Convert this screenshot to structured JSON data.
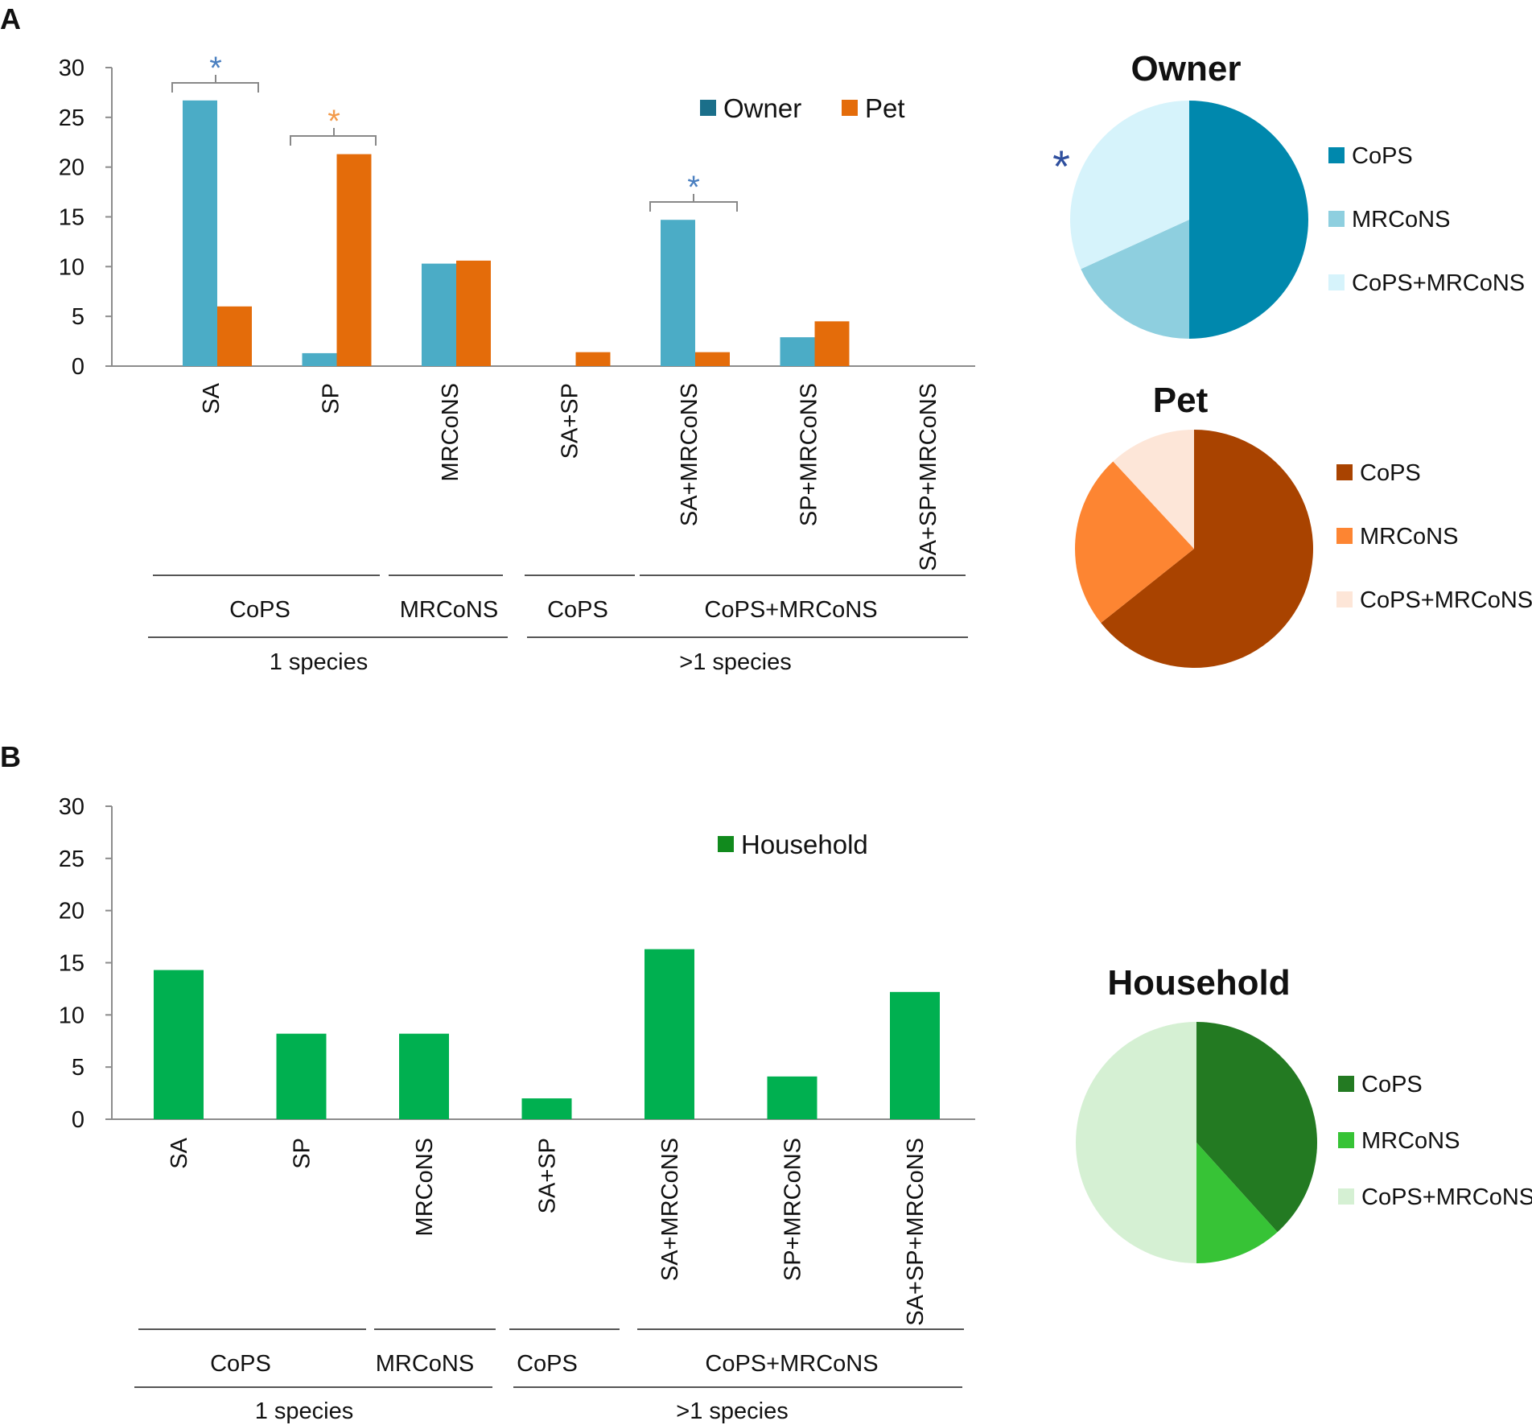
{
  "panels": {
    "a": {
      "label": "A",
      "legend": [
        "Owner",
        "Pet"
      ],
      "group_labels": {
        "sub": [
          "CoPS",
          "MRCoNS",
          "CoPS",
          "CoPS+MRCoNS"
        ],
        "main": [
          "1 species",
          ">1 species"
        ]
      },
      "significance": [
        {
          "category": "SA",
          "symbol": "*",
          "color": "#4a7fc0"
        },
        {
          "category": "SP",
          "symbol": "*",
          "color": "#f39a4a"
        },
        {
          "category": "SA+MRCoNS",
          "symbol": "*",
          "color": "#4a7fc0"
        }
      ]
    },
    "b": {
      "label": "B",
      "legend": [
        "Household"
      ],
      "group_labels": {
        "sub": [
          "CoPS",
          "MRCoNS",
          "CoPS",
          "CoPS+MRCoNS"
        ],
        "main": [
          "1 species",
          ">1 species"
        ]
      }
    }
  },
  "colors": {
    "owner_bar": "#4bacc6",
    "pet_bar": "#e46c0a",
    "owner_legend": "#1b6f8a",
    "pet_legend": "#e46c0a",
    "household_bar": "#00b050",
    "household_legend": "#118a1d"
  },
  "chart_data": [
    {
      "type": "bar",
      "panel": "A",
      "title": "",
      "xlabel": "",
      "ylabel": "",
      "categories": [
        "SA",
        "SP",
        "MRCoNS",
        "SA+SP",
        "SA+MRCoNS",
        "SP+MRCoNS",
        "SA+SP+MRCoNS"
      ],
      "series": [
        {
          "name": "Owner",
          "values": [
            26.7,
            1.3,
            10.3,
            0,
            14.7,
            2.9,
            0
          ]
        },
        {
          "name": "Pet",
          "values": [
            6.0,
            21.3,
            10.6,
            1.4,
            1.4,
            4.5,
            0
          ]
        }
      ],
      "ylim": [
        0,
        30
      ],
      "yticks": [
        0,
        5,
        10,
        15,
        20,
        25,
        30
      ],
      "legend_position": "top-right"
    },
    {
      "type": "bar",
      "panel": "B",
      "title": "",
      "xlabel": "",
      "ylabel": "",
      "categories": [
        "SA",
        "SP",
        "MRCoNS",
        "SA+SP",
        "SA+MRCoNS",
        "SP+MRCoNS",
        "SA+SP+MRCoNS"
      ],
      "series": [
        {
          "name": "Household",
          "values": [
            14.3,
            8.2,
            8.2,
            2.0,
            16.3,
            4.1,
            12.2
          ]
        }
      ],
      "ylim": [
        0,
        30
      ],
      "yticks": [
        0,
        5,
        10,
        15,
        20,
        25,
        30
      ],
      "legend_position": "top-right"
    },
    {
      "type": "pie",
      "title": "Owner",
      "labels": [
        "CoPS",
        "MRCoNS",
        "CoPS+MRCoNS"
      ],
      "values": [
        50,
        18.2,
        31.8
      ],
      "colors": [
        "#0088ad",
        "#8ecfdf",
        "#d6f3fb"
      ],
      "annotation": {
        "symbol": "*",
        "slice": "CoPS+MRCoNS",
        "color": "#2f4f9e"
      }
    },
    {
      "type": "pie",
      "title": "Pet",
      "labels": [
        "CoPS",
        "MRCoNS",
        "CoPS+MRCoNS"
      ],
      "values": [
        64.3,
        23.8,
        11.9
      ],
      "colors": [
        "#a94300",
        "#fd8532",
        "#fde6d8"
      ]
    },
    {
      "type": "pie",
      "title": "Household",
      "labels": [
        "CoPS",
        "MRCoNS",
        "CoPS+MRCoNS"
      ],
      "values": [
        38.3,
        11.7,
        50
      ],
      "colors": [
        "#237a22",
        "#37c336",
        "#d5f0d3"
      ]
    }
  ]
}
